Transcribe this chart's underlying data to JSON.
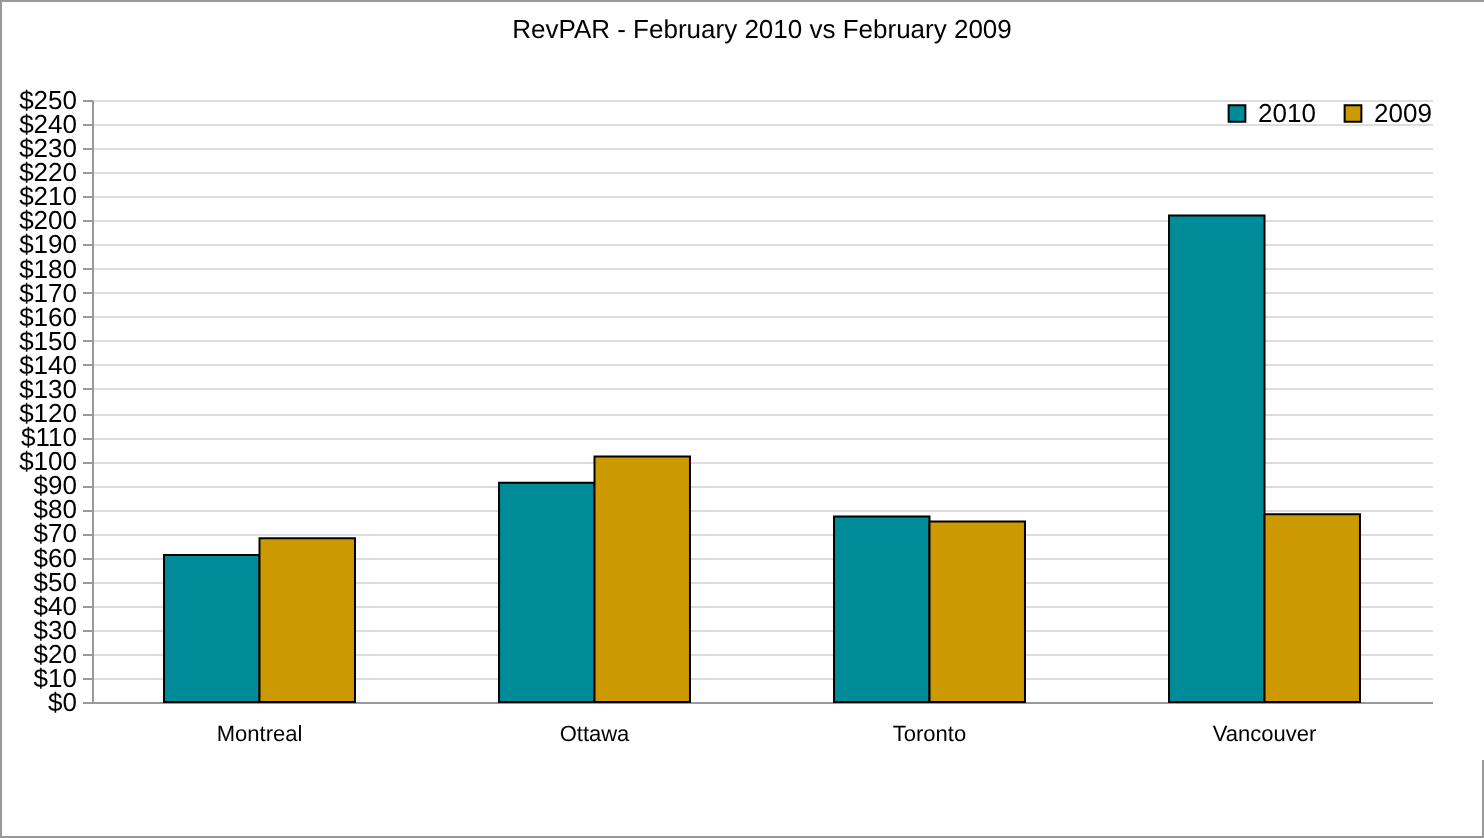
{
  "chart_data": {
    "type": "bar",
    "title": "RevPAR - February 2010 vs February 2009",
    "categories": [
      "Montreal",
      "Ottawa",
      "Toronto",
      "Vancouver"
    ],
    "series": [
      {
        "name": "2010",
        "color": "#008b99",
        "values": [
          61,
          91,
          77,
          202
        ]
      },
      {
        "name": "2009",
        "color": "#cc9900",
        "values": [
          68,
          102,
          75,
          78
        ]
      }
    ],
    "ylim": [
      0,
      250
    ],
    "yticks": [
      {
        "value": 0,
        "label": "$0"
      },
      {
        "value": 10,
        "label": "$10"
      },
      {
        "value": 20,
        "label": "$20"
      },
      {
        "value": 30,
        "label": "$30"
      },
      {
        "value": 40,
        "label": "$40"
      },
      {
        "value": 50,
        "label": "$50"
      },
      {
        "value": 60,
        "label": "$60"
      },
      {
        "value": 70,
        "label": "$70"
      },
      {
        "value": 80,
        "label": "$80"
      },
      {
        "value": 90,
        "label": "$90"
      },
      {
        "value": 100,
        "label": "$100"
      },
      {
        "value": 110,
        "label": "$110"
      },
      {
        "value": 120,
        "label": "$120"
      },
      {
        "value": 130,
        "label": "$130"
      },
      {
        "value": 140,
        "label": "$140"
      },
      {
        "value": 150,
        "label": "$150"
      },
      {
        "value": 160,
        "label": "$160"
      },
      {
        "value": 170,
        "label": "$170"
      },
      {
        "value": 180,
        "label": "$180"
      },
      {
        "value": 190,
        "label": "$190"
      },
      {
        "value": 200,
        "label": "$200"
      },
      {
        "value": 210,
        "label": "$210"
      },
      {
        "value": 220,
        "label": "$220"
      },
      {
        "value": 230,
        "label": "$230"
      },
      {
        "value": 240,
        "label": "$240"
      },
      {
        "value": 250,
        "label": "$250"
      }
    ],
    "grid": "y",
    "legend": "top right"
  }
}
